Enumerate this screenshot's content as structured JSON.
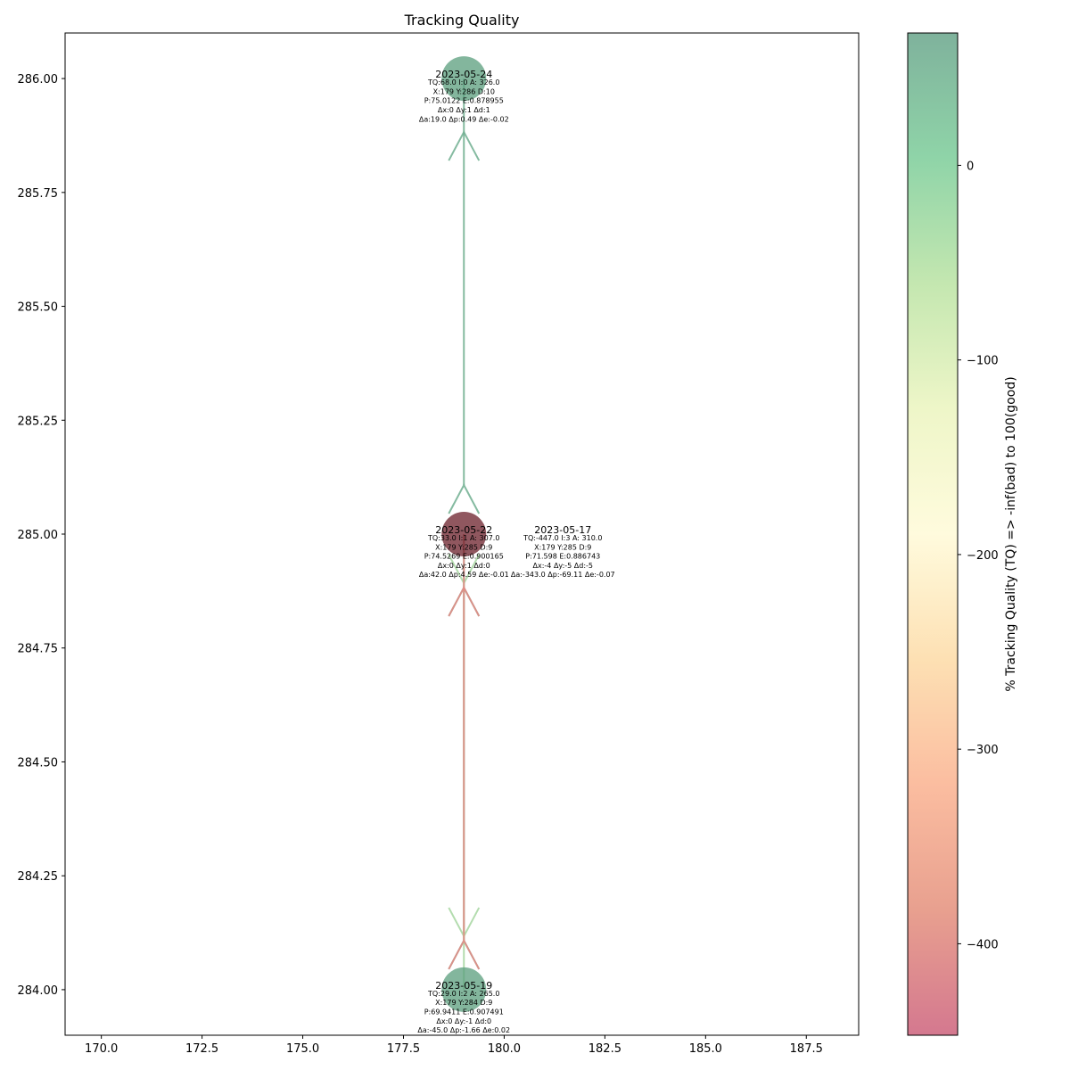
{
  "chart_data": {
    "type": "scatter",
    "title": "Tracking Quality",
    "xlabel": "",
    "ylabel": "",
    "xlim": [
      169.1,
      188.8
    ],
    "ylim": [
      283.9,
      286.1
    ],
    "xticks": [
      "170.0",
      "172.5",
      "175.0",
      "177.5",
      "180.0",
      "182.5",
      "185.0",
      "187.5"
    ],
    "xtick_values": [
      170.0,
      172.5,
      175.0,
      177.5,
      180.0,
      182.5,
      185.0,
      187.5
    ],
    "yticks": [
      "284.00",
      "284.25",
      "284.50",
      "284.75",
      "285.00",
      "285.25",
      "285.50",
      "285.75",
      "286.00"
    ],
    "ytick_values": [
      284.0,
      284.25,
      284.5,
      284.75,
      285.0,
      285.25,
      285.5,
      285.75,
      286.0
    ],
    "grid": false,
    "colorbar": {
      "label": "% Tracking Quality (TQ) => -inf(bad) to 100(good)",
      "range": [
        -447,
        68
      ],
      "ticks": [
        "0",
        "−100",
        "−200",
        "−300",
        "−400"
      ],
      "tick_values": [
        0,
        -100,
        -200,
        -300,
        -400
      ],
      "colormap": [
        "#d4788f",
        "#e8a08f",
        "#fbbda0",
        "#fde0b3",
        "#fffbdd",
        "#eef6c8",
        "#c4e7b0",
        "#8fd4a8",
        "#7fb29c"
      ]
    },
    "points": [
      {
        "date": "2023-05-24",
        "x": 179,
        "y": 286,
        "tq": 68.0,
        "color": "#5a9e7c",
        "lines": [
          "TQ:68.0 I:0 A: 326.0",
          "X:179 Y:286 D:10",
          "P:75.0122 E:0.878955",
          "Δx:0 Δy:1 Δd:1",
          "Δa:19.0 Δp:0.49 Δe:-0.02"
        ]
      },
      {
        "date": "2023-05-22",
        "x": 179,
        "y": 285,
        "tq": 33.0,
        "color": "#6b1f2a",
        "lines": [
          "TQ:33.0 I:1 A: 307.0",
          "X:179 Y:285 D:9",
          "P:74.5269 E:0.900165",
          "Δx:0 Δy:1 Δd:0",
          "Δa:42.0 Δp:4.59 Δe:-0.01"
        ]
      },
      {
        "date": "2023-05-17",
        "x": 179,
        "y": 285,
        "tq": -447.0,
        "color": "#c96a7f",
        "lines": [
          "TQ:-447.0 I:3 A: 310.0",
          "X:179 Y:285 D:9",
          "P:71.598 E:0.886743",
          "Δx:-4 Δy:-5 Δd:-5",
          "Δa:-343.0 Δp:-69.11 Δe:-0.07"
        ]
      },
      {
        "date": "2023-05-19",
        "x": 179,
        "y": 284,
        "tq": 29.0,
        "color": "#5a9e7c",
        "lines": [
          "TQ:29.0 I:2 A: 265.0",
          "X:179 Y:284 D:9",
          "P:69.9411 E:0.907491",
          "Δx:0 Δy:-1 Δd:0",
          "Δa:-45.0 Δp:-1.66 Δe:0.02"
        ]
      }
    ],
    "arrows": [
      {
        "from": [
          179,
          285
        ],
        "to": [
          179,
          286
        ],
        "color": "#6fae8f"
      },
      {
        "from": [
          179,
          284
        ],
        "to": [
          179,
          285
        ],
        "color": "#6fae8f"
      },
      {
        "from": [
          179,
          285
        ],
        "to": [
          179,
          284
        ],
        "color": "#a6d6a0"
      },
      {
        "from": [
          179,
          284
        ],
        "to": [
          179,
          285
        ],
        "color": "#e88a85"
      }
    ]
  }
}
